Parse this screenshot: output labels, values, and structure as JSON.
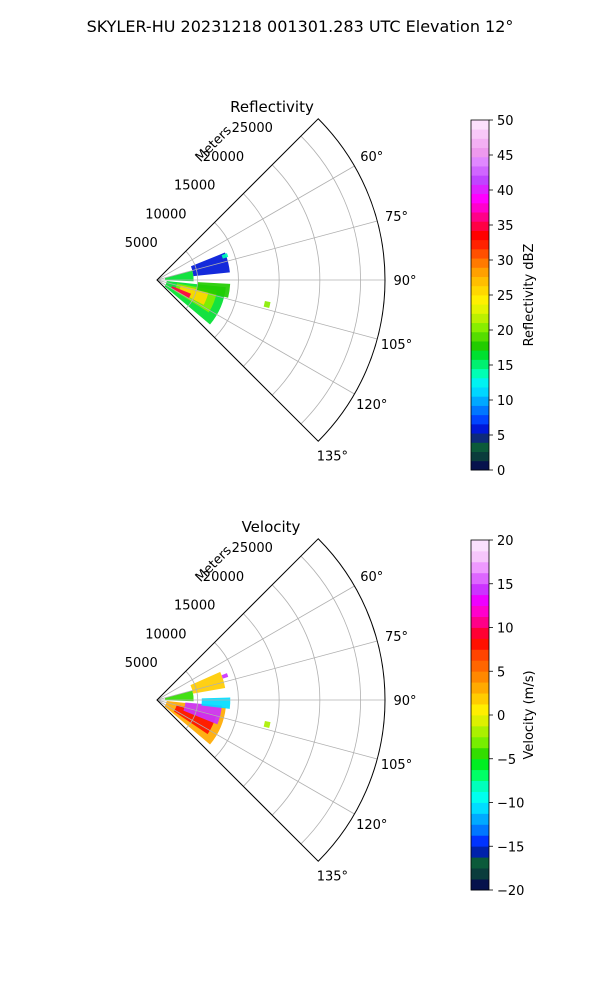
{
  "figure": {
    "suptitle": "SKYLER-HU  20231218  001301.283 UTC Elevation 12°"
  },
  "chart_data": [
    {
      "type": "heatmap",
      "subtype": "polar-sector-radar",
      "title": "Reflectivity",
      "radial_label": "Meters",
      "radial_ticks": [
        5000,
        10000,
        15000,
        20000,
        25000
      ],
      "radial_tick_labels": [
        "5000",
        "10000",
        "15000",
        "20000",
        "25000"
      ],
      "rlim": [
        0,
        28000
      ],
      "theta_range_deg": [
        45,
        135
      ],
      "theta_ticks_deg": [
        60,
        75,
        90,
        105,
        120,
        135
      ],
      "theta_tick_labels": [
        "60°",
        "75°",
        "90°",
        "105°",
        "120°",
        "135°"
      ],
      "grid": true,
      "colorbar": {
        "label": "Reflectivity dBZ",
        "range": [
          0,
          50
        ],
        "ticks": [
          0,
          5,
          10,
          15,
          20,
          25,
          30,
          35,
          40,
          45,
          50
        ],
        "tick_labels": [
          "0",
          "5",
          "10",
          "15",
          "20",
          "25",
          "30",
          "35",
          "40",
          "45",
          "50"
        ],
        "colors": [
          "#06124c",
          "#0a3c3c",
          "#0b5a3a",
          "#0e2a7a",
          "#0018d8",
          "#0044ff",
          "#0077ff",
          "#00a8ff",
          "#00d6ff",
          "#00f2f2",
          "#00ffb4",
          "#00f070",
          "#00e030",
          "#22cc00",
          "#55dd00",
          "#88ee00",
          "#bbf000",
          "#e4f400",
          "#fff000",
          "#ffd800",
          "#ffbe00",
          "#ffa000",
          "#ff7a00",
          "#ff5000",
          "#ff2200",
          "#ff0000",
          "#ff0044",
          "#ff0088",
          "#ff00cc",
          "#ff00ff",
          "#dd22ff",
          "#c044ff",
          "#d066ff",
          "#e088ff",
          "#ee99ee",
          "#f4b0f4",
          "#f8c8f8",
          "#fce0fc"
        ]
      },
      "echo_regions": [
        {
          "range_km": [
            1.2,
            8.5
          ],
          "azimuth_deg": [
            96,
            130
          ],
          "value": 16
        },
        {
          "range_km": [
            2.5,
            7.5
          ],
          "azimuth_deg": [
            100,
            122
          ],
          "value": 21
        },
        {
          "range_km": [
            3.0,
            6.5
          ],
          "azimuth_deg": [
            103,
            118
          ],
          "value": 25
        },
        {
          "range_km": [
            2.0,
            4.5
          ],
          "azimuth_deg": [
            112,
            120
          ],
          "value": 35
        },
        {
          "range_km": [
            5.0,
            9.0
          ],
          "azimuth_deg": [
            93,
            104
          ],
          "value": 18
        },
        {
          "range_km": [
            1.0,
            4.5
          ],
          "azimuth_deg": [
            75,
            92
          ],
          "value": 16
        },
        {
          "range_km": [
            4.5,
            9.0
          ],
          "azimuth_deg": [
            68,
            84
          ],
          "value": 6
        },
        {
          "range_km": [
            13.5,
            14.2
          ],
          "azimuth_deg": [
            101,
            104
          ],
          "value": 20
        },
        {
          "range_km": [
            8.5,
            9.2
          ],
          "azimuth_deg": [
            69,
            72
          ],
          "value": 14
        }
      ]
    },
    {
      "type": "heatmap",
      "subtype": "polar-sector-radar",
      "title": "Velocity",
      "radial_label": "Meters",
      "radial_ticks": [
        5000,
        10000,
        15000,
        20000,
        25000
      ],
      "radial_tick_labels": [
        "5000",
        "10000",
        "15000",
        "20000",
        "25000"
      ],
      "rlim": [
        0,
        28000
      ],
      "theta_range_deg": [
        45,
        135
      ],
      "theta_ticks_deg": [
        60,
        75,
        90,
        105,
        120,
        135
      ],
      "theta_tick_labels": [
        "60°",
        "75°",
        "90°",
        "105°",
        "120°",
        "135°"
      ],
      "grid": true,
      "colorbar": {
        "label": "Velocity (m/s)",
        "range": [
          -20,
          20
        ],
        "ticks": [
          -20,
          -15,
          -10,
          -5,
          0,
          5,
          10,
          15,
          20
        ],
        "tick_labels": [
          "−20",
          "−15",
          "−10",
          "−5",
          "0",
          "5",
          "10",
          "15",
          "20"
        ],
        "colors": [
          "#06124c",
          "#0a3c3c",
          "#0b5a3a",
          "#0022aa",
          "#0033ff",
          "#0077ff",
          "#00aaff",
          "#00ddff",
          "#00ffee",
          "#00ffbb",
          "#00ff66",
          "#00ee22",
          "#33dd00",
          "#77ee00",
          "#aaf000",
          "#ddf000",
          "#ffee00",
          "#ffcc00",
          "#ffaa00",
          "#ff8800",
          "#ff6600",
          "#ff4400",
          "#ff1100",
          "#ff0033",
          "#ff0088",
          "#ff00cc",
          "#ee00ff",
          "#cc33ff",
          "#dd66ff",
          "#ee99ff",
          "#f6c6fb",
          "#fbe0fd"
        ]
      },
      "echo_regions": [
        {
          "range_km": [
            1.2,
            8.5
          ],
          "azimuth_deg": [
            96,
            130
          ],
          "value": 3
        },
        {
          "range_km": [
            2.5,
            7.5
          ],
          "azimuth_deg": [
            104,
            124
          ],
          "value": 8
        },
        {
          "range_km": [
            3.5,
            8.0
          ],
          "azimuth_deg": [
            95,
            112
          ],
          "value": 14
        },
        {
          "range_km": [
            1.0,
            4.5
          ],
          "azimuth_deg": [
            75,
            92
          ],
          "value": -4
        },
        {
          "range_km": [
            5.5,
            9.0
          ],
          "azimuth_deg": [
            88,
            97
          ],
          "value": -11
        },
        {
          "range_km": [
            4.5,
            8.5
          ],
          "azimuth_deg": [
            66,
            80
          ],
          "value": 2
        },
        {
          "range_km": [
            13.5,
            14.2
          ],
          "azimuth_deg": [
            101,
            104
          ],
          "value": -2
        },
        {
          "range_km": [
            8.5,
            9.2
          ],
          "azimuth_deg": [
            69,
            72
          ],
          "value": 14
        }
      ]
    }
  ]
}
